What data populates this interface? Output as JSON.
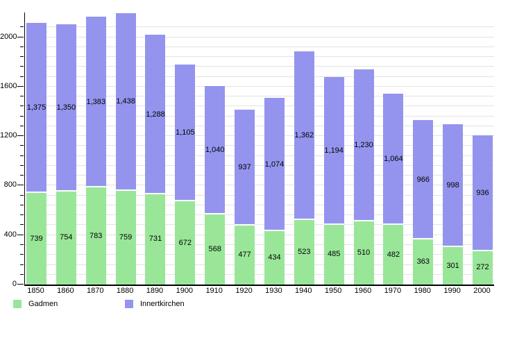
{
  "chart_data": {
    "type": "bar",
    "stacked": true,
    "title": "",
    "xlabel": "",
    "ylabel": "",
    "categories": [
      "1850",
      "1860",
      "1870",
      "1880",
      "1890",
      "1900",
      "1910",
      "1920",
      "1930",
      "1940",
      "1950",
      "1960",
      "1970",
      "1980",
      "1990",
      "2000"
    ],
    "series": [
      {
        "name": "Gadmen",
        "color": "#99e699",
        "values": [
          739,
          754,
          783,
          759,
          731,
          672,
          568,
          477,
          434,
          523,
          485,
          510,
          482,
          363,
          301,
          272
        ],
        "labels": [
          "739",
          "754",
          "783",
          "759",
          "731",
          "672",
          "568",
          "477",
          "434",
          "523",
          "485",
          "510",
          "482",
          "363",
          "301",
          "272"
        ]
      },
      {
        "name": "Innertkirchen",
        "color": "#9494ee",
        "values": [
          1375,
          1350,
          1383,
          1438,
          1288,
          1105,
          1040,
          937,
          1074,
          1362,
          1194,
          1230,
          1064,
          966,
          998,
          936
        ],
        "labels": [
          "1,375",
          "1,350",
          "1,383",
          "1,438",
          "1,288",
          "1,105",
          "1,040",
          "937",
          "1,074",
          "1,362",
          "1,194",
          "1,230",
          "1,064",
          "966",
          "998",
          "936"
        ]
      }
    ],
    "ylim": [
      0,
      2200
    ],
    "yticks": [
      0,
      400,
      800,
      1200,
      1600,
      2000
    ],
    "ytick_labels": [
      "0",
      "400",
      "800",
      "1200",
      "1600",
      "2000"
    ],
    "minor_step": 80,
    "grid": true,
    "gridline_color": "#e3e3e3",
    "axis_color": "#000000",
    "bar_label_color": "#000000",
    "background": "#ffffff",
    "legend_position": "bottom-left",
    "bar_labels": true
  }
}
